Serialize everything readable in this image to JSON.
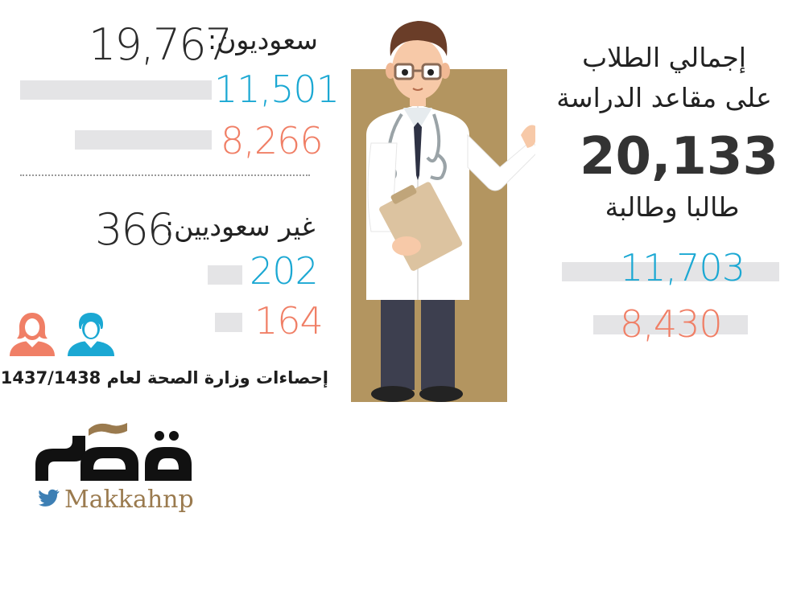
{
  "saudi": {
    "label": "سعوديون:",
    "total": "19,767",
    "male": "11,501",
    "female": "8,266"
  },
  "non_saudi": {
    "label": "غير سعوديين:",
    "total": "366",
    "male": "202",
    "female": "164"
  },
  "total": {
    "title_line1": "إجمالي الطلاب",
    "title_line2": "على مقاعد الدراسة",
    "value": "20,133",
    "subtitle": "طالبا وطالبة",
    "male": "11,703",
    "female": "8,430"
  },
  "source_note": "إحصاءات وزارة الصحة لعام 1437/1438",
  "logo": {
    "wordmark": "مكة",
    "handle": "Makkahnp"
  },
  "colors": {
    "male": "#1ba8d3",
    "female": "#f07f66",
    "bar": "#e4e4e6",
    "panel": "#b39560"
  },
  "icons": [
    "female-user-icon",
    "male-user-icon",
    "twitter-icon",
    "doctor-illustration"
  ]
}
